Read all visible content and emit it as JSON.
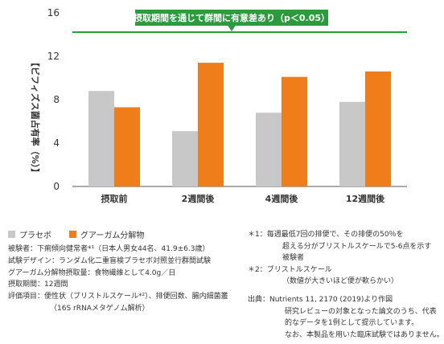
{
  "chart_data": {
    "type": "bar",
    "ylabel": "【ビフィズス菌占有率（%）】",
    "ylim": [
      0,
      16
    ],
    "yticks": [
      "0",
      "4",
      "8",
      "12",
      "16"
    ],
    "categories": [
      "摂取前",
      "2週間後",
      "4週間後",
      "12週間後"
    ],
    "series": [
      {
        "name": "プラセボ",
        "color": "#c8c8c8",
        "values": [
          8.8,
          5.1,
          6.8,
          7.8
        ]
      },
      {
        "name": "グアーガム分解物",
        "color": "#ee7d1a",
        "values": [
          7.3,
          11.4,
          10.1,
          10.6
        ]
      }
    ],
    "annotation": "摂取期間を通じて群間に有意差あり（p＜0.05）",
    "annotation_color": "#2d9a3e",
    "grid": false
  },
  "notes_left": [
    "被験者：下痢傾向健常者*¹（日本人男女44名、41.9±6.3歳）",
    "試験デザイン：ランダム化二重盲検プラセボ対照並行群間試験",
    "グアーガム分解物摂取量：食物繊維として4.0g／日",
    "摂取期間：12週間",
    "評価項目：便性状（ブリストルスケール*²）、排便回数、腸内細菌叢",
    "（16S rRNAメタゲノム解析）"
  ],
  "notes_right": {
    "note1": [
      "＊1：毎週最低7回の排便で、その排便の50％を",
      "超える分がブリストルスケールで5-6点を示す",
      "被験者"
    ],
    "note2": [
      "＊2：ブリストルスケール",
      "（数値が大きいほど便が軟らかい）"
    ],
    "source": [
      "出典：Nutrients 11, 2170 (2019)より作図",
      "研究レビューの対象となった論文のうち、代表",
      "的なデータを1例として提示しています。",
      "なお、本製品を用いた臨床試験ではありません。"
    ]
  }
}
